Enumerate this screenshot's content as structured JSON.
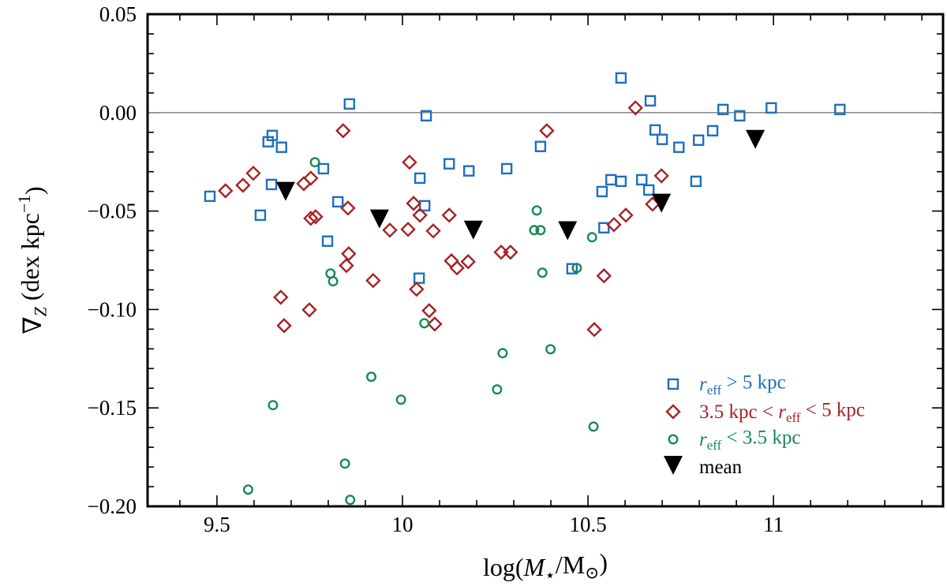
{
  "chart_data": {
    "type": "scatter",
    "xlabel": {
      "parts": [
        {
          "t": "log("
        },
        {
          "t": "M",
          "italic": true
        },
        {
          "t": "⋆",
          "sub": true
        },
        {
          "t": "/M"
        },
        {
          "t": "⊙",
          "sub": true
        },
        {
          "t": ")"
        }
      ]
    },
    "ylabel": {
      "parts": [
        {
          "t": "∇"
        },
        {
          "t": "Z",
          "sub": true,
          "italic": true
        },
        {
          "t": " (dex kpc"
        },
        {
          "t": "−1",
          "sup": true
        },
        {
          "t": ")"
        }
      ]
    },
    "xlim": [
      9.313,
      11.457
    ],
    "ylim": [
      -0.2,
      0.05
    ],
    "xticks": [
      9.5,
      10,
      10.5,
      11
    ],
    "xtick_labels": [
      "9.5",
      "10",
      "10.5",
      "11"
    ],
    "yticks": [
      0.05,
      0.0,
      -0.05,
      -0.1,
      -0.15,
      -0.2
    ],
    "ytick_labels": [
      "0.05",
      "0.00",
      "−0.05",
      "−0.10",
      "−0.15",
      "−0.20"
    ],
    "x_minor_step": 0.1,
    "y_minor_step": 0.01,
    "reference_line_y": 0.0,
    "grid": false,
    "legend_position": "lower-right",
    "series": [
      {
        "name": "r_eff > 5 kpc",
        "legend_parts": [
          {
            "t": "r",
            "italic": true
          },
          {
            "t": "eff",
            "sub": true
          },
          {
            "t": " > 5 kpc"
          }
        ],
        "marker": "square",
        "color": "#1f6fbf",
        "points": [
          [
            9.481,
            -0.0425
          ],
          [
            9.617,
            -0.0521
          ],
          [
            9.638,
            -0.0148
          ],
          [
            9.649,
            -0.0116
          ],
          [
            9.674,
            -0.0176
          ],
          [
            9.647,
            -0.0365
          ],
          [
            9.787,
            -0.0285
          ],
          [
            9.798,
            -0.0653
          ],
          [
            9.826,
            -0.0453
          ],
          [
            9.857,
            0.0044
          ],
          [
            10.064,
            -0.0016
          ],
          [
            10.047,
            -0.0333
          ],
          [
            10.06,
            -0.0473
          ],
          [
            10.045,
            -0.0841
          ],
          [
            10.126,
            -0.026
          ],
          [
            10.179,
            -0.0296
          ],
          [
            10.281,
            -0.0285
          ],
          [
            10.372,
            -0.0172
          ],
          [
            10.457,
            -0.0793
          ],
          [
            10.538,
            -0.0401
          ],
          [
            10.543,
            -0.0585
          ],
          [
            10.562,
            -0.0341
          ],
          [
            10.589,
            -0.0349
          ],
          [
            10.589,
            0.0176
          ],
          [
            10.645,
            -0.0341
          ],
          [
            10.664,
            -0.0393
          ],
          [
            10.668,
            0.006
          ],
          [
            10.681,
            -0.0088
          ],
          [
            10.7,
            -0.0136
          ],
          [
            10.745,
            -0.0176
          ],
          [
            10.791,
            -0.0349
          ],
          [
            10.798,
            -0.014
          ],
          [
            10.836,
            -0.0092
          ],
          [
            10.864,
            0.0016
          ],
          [
            10.909,
            -0.0016
          ],
          [
            10.994,
            0.0024
          ],
          [
            11.179,
            0.0016
          ]
        ]
      },
      {
        "name": "3.5 kpc < r_eff < 5 kpc",
        "legend_parts": [
          {
            "t": "3.5 kpc < "
          },
          {
            "t": "r",
            "italic": true
          },
          {
            "t": "eff",
            "sub": true
          },
          {
            "t": " < 5 kpc"
          }
        ],
        "marker": "diamond",
        "color": "#a52226",
        "points": [
          [
            9.523,
            -0.0397
          ],
          [
            9.57,
            -0.0369
          ],
          [
            9.598,
            -0.0308
          ],
          [
            9.672,
            -0.0938
          ],
          [
            9.681,
            -0.1082
          ],
          [
            9.734,
            -0.0361
          ],
          [
            9.753,
            -0.0333
          ],
          [
            9.753,
            -0.0537
          ],
          [
            9.766,
            -0.0529
          ],
          [
            9.749,
            -0.1002
          ],
          [
            9.84,
            -0.0092
          ],
          [
            9.853,
            -0.0485
          ],
          [
            9.855,
            -0.0717
          ],
          [
            9.849,
            -0.0777
          ],
          [
            9.921,
            -0.0853
          ],
          [
            9.966,
            -0.0597
          ],
          [
            10.015,
            -0.0593
          ],
          [
            10.019,
            -0.0252
          ],
          [
            10.03,
            -0.0461
          ],
          [
            10.047,
            -0.0521
          ],
          [
            10.038,
            -0.0897
          ],
          [
            10.072,
            -0.1006
          ],
          [
            10.087,
            -0.1074
          ],
          [
            10.083,
            -0.0601
          ],
          [
            10.126,
            -0.0521
          ],
          [
            10.132,
            -0.0753
          ],
          [
            10.147,
            -0.0789
          ],
          [
            10.177,
            -0.0757
          ],
          [
            10.266,
            -0.0709
          ],
          [
            10.291,
            -0.0709
          ],
          [
            10.389,
            -0.0092
          ],
          [
            10.517,
            -0.1102
          ],
          [
            10.543,
            -0.0829
          ],
          [
            10.57,
            -0.0569
          ],
          [
            10.602,
            -0.0521
          ],
          [
            10.628,
            0.0024
          ],
          [
            10.674,
            -0.0465
          ],
          [
            10.698,
            -0.0321
          ]
        ]
      },
      {
        "name": "r_eff < 3.5 kpc",
        "legend_parts": [
          {
            "t": "r",
            "italic": true
          },
          {
            "t": "eff",
            "sub": true
          },
          {
            "t": " < 3.5 kpc"
          }
        ],
        "marker": "circle",
        "color": "#178a55",
        "points": [
          [
            9.584,
            -0.1915
          ],
          [
            9.651,
            -0.1486
          ],
          [
            9.764,
            -0.0252
          ],
          [
            9.806,
            -0.0817
          ],
          [
            9.813,
            -0.0857
          ],
          [
            9.845,
            -0.1783
          ],
          [
            9.859,
            -0.1967
          ],
          [
            9.916,
            -0.1342
          ],
          [
            9.996,
            -0.1458
          ],
          [
            10.059,
            -0.107
          ],
          [
            10.255,
            -0.1406
          ],
          [
            10.27,
            -0.1222
          ],
          [
            10.355,
            -0.0597
          ],
          [
            10.362,
            -0.0497
          ],
          [
            10.372,
            -0.0597
          ],
          [
            10.377,
            -0.0813
          ],
          [
            10.399,
            -0.1202
          ],
          [
            10.47,
            -0.0789
          ],
          [
            10.511,
            -0.0633
          ],
          [
            10.515,
            -0.1595
          ]
        ]
      },
      {
        "name": "mean",
        "legend_parts": [
          {
            "t": "mean"
          }
        ],
        "marker": "triangle-down",
        "color": "#000000",
        "points": [
          [
            9.685,
            -0.04
          ],
          [
            9.938,
            -0.054
          ],
          [
            10.191,
            -0.0597
          ],
          [
            10.445,
            -0.06
          ],
          [
            10.698,
            -0.046
          ],
          [
            10.951,
            -0.0136
          ]
        ]
      }
    ]
  }
}
